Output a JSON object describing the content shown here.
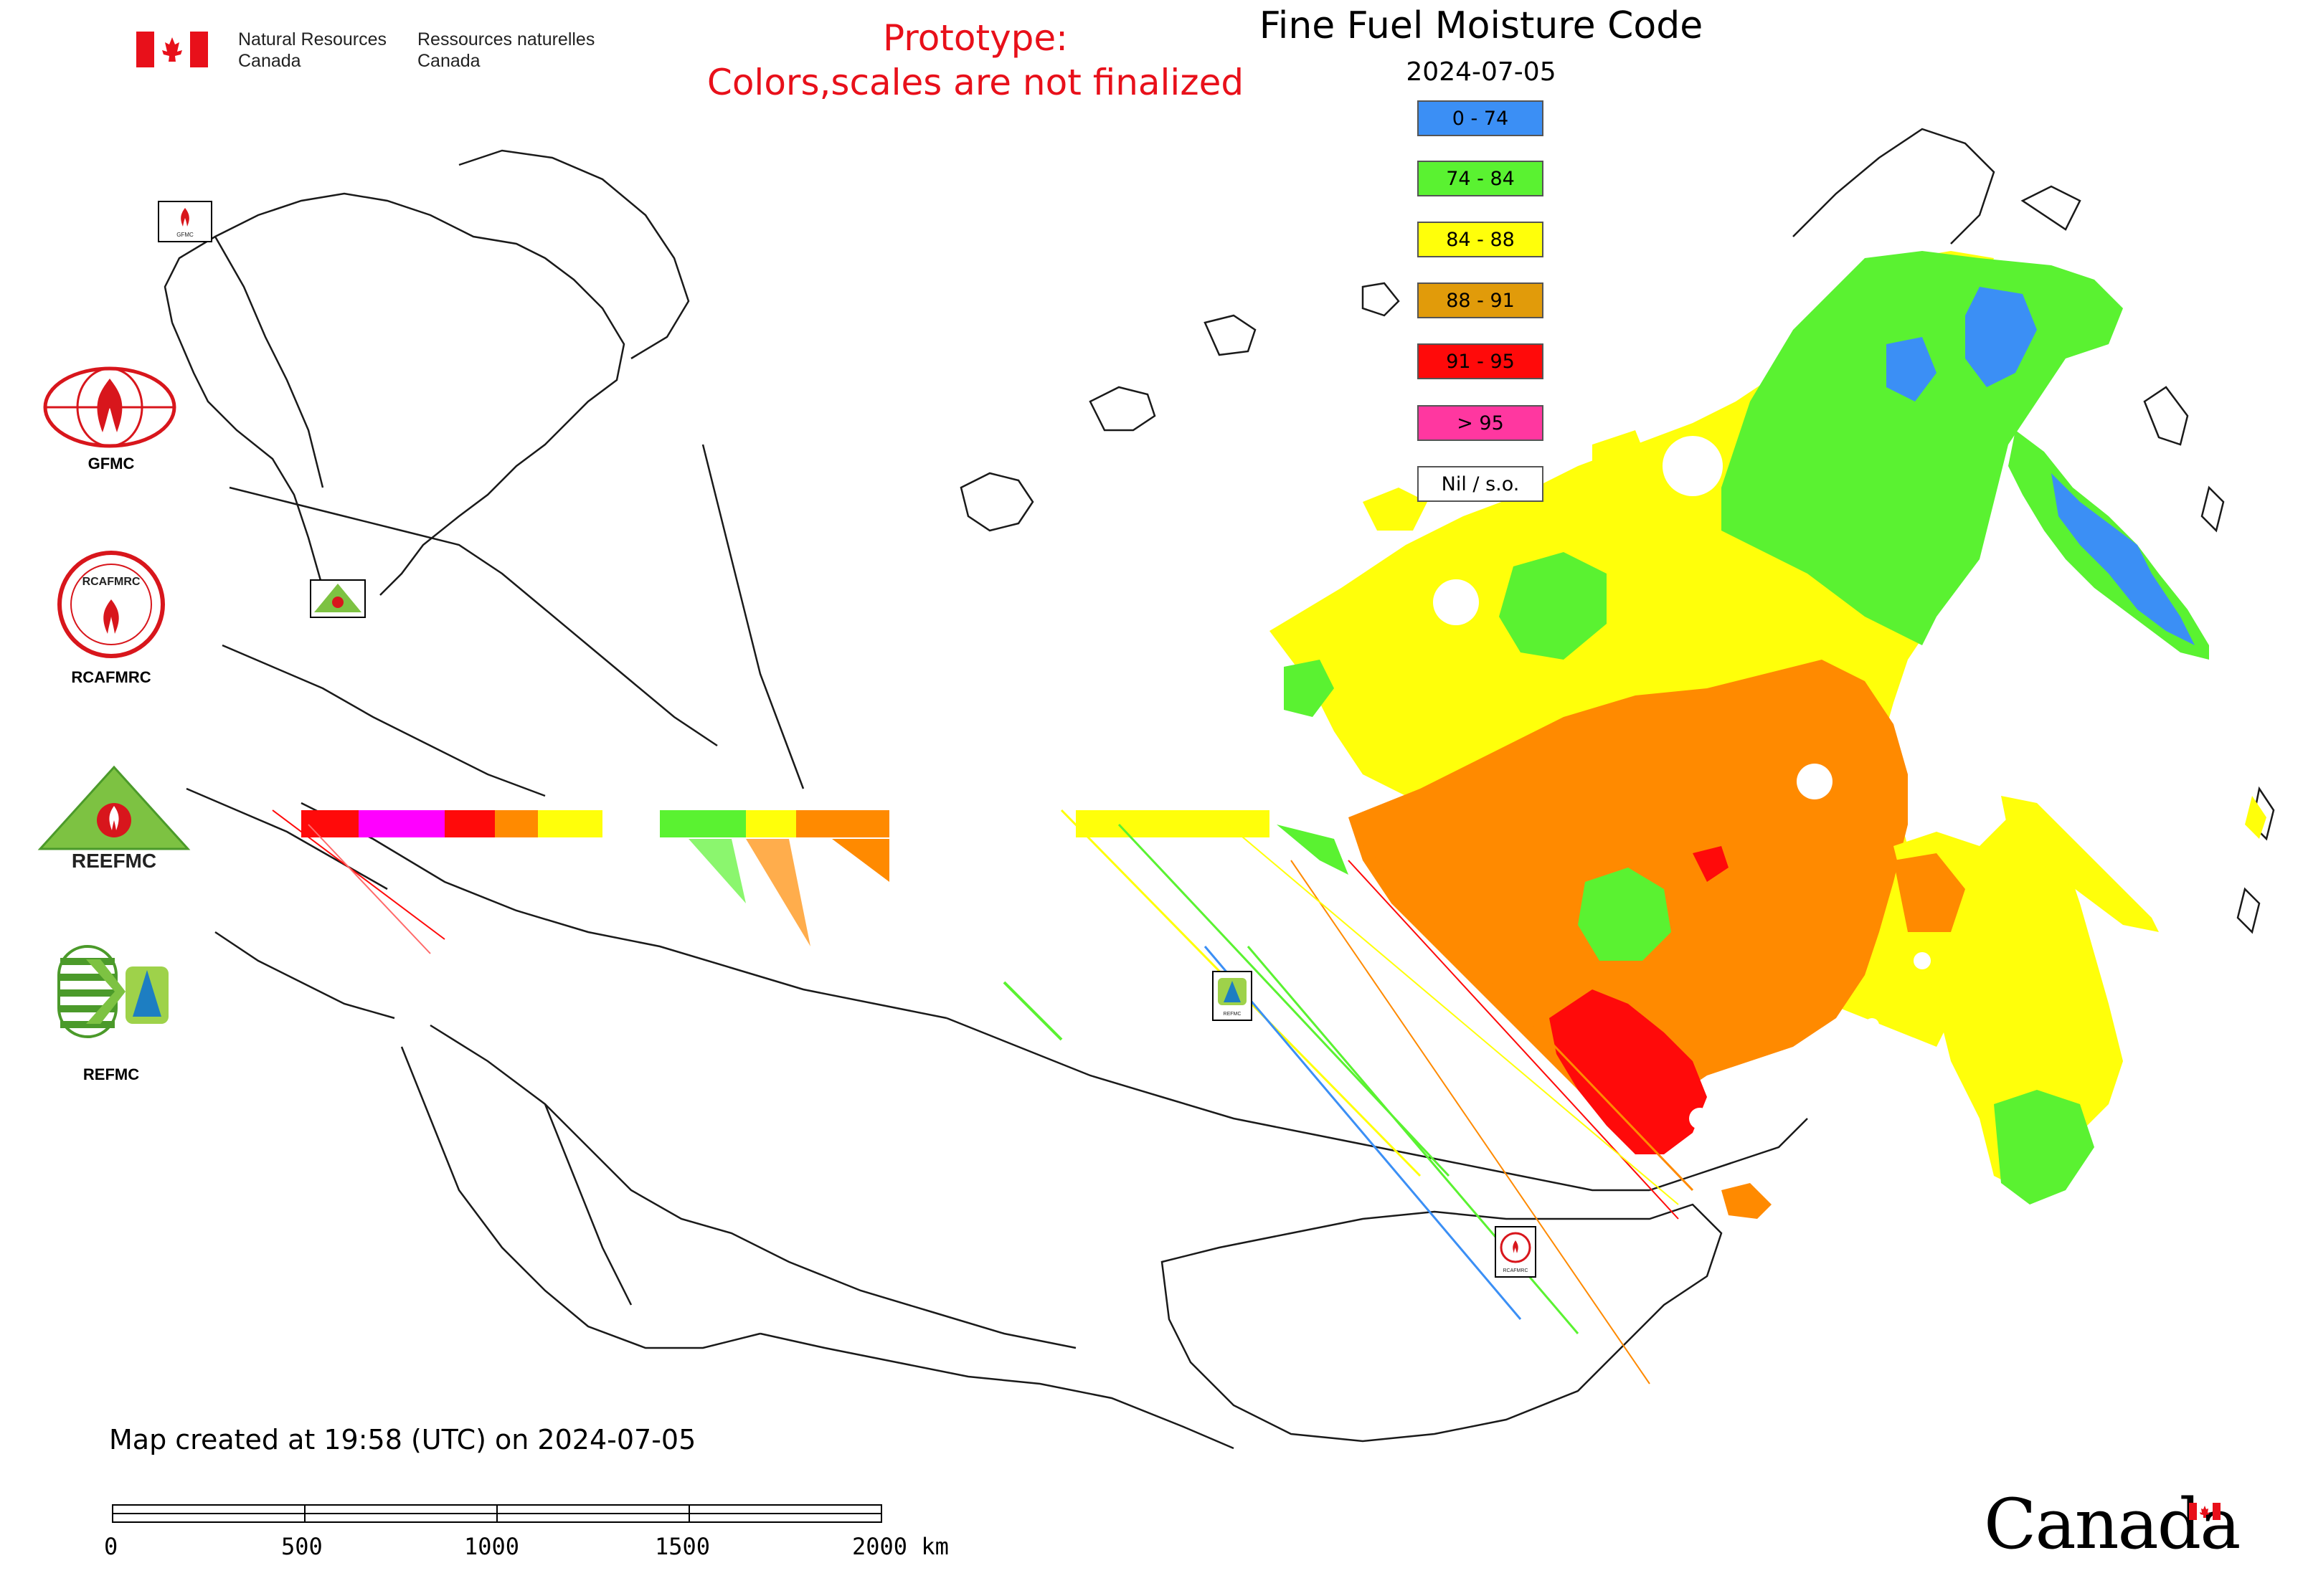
{
  "header": {
    "gov_en_line1": "Natural Resources",
    "gov_en_line2": "Canada",
    "gov_fr_line1": "Ressources naturelles",
    "gov_fr_line2": "Canada",
    "warning_line1": "Prototype:",
    "warning_line2": "Colors,scales are not finalized",
    "title": "Fine Fuel Moisture Code",
    "date": "2024-07-05"
  },
  "legend": [
    {
      "label": "0 - 74",
      "color": "#3b8ff5"
    },
    {
      "label": "74 - 84",
      "color": "#5af231"
    },
    {
      "label": "84 - 88",
      "color": "#ffff0a"
    },
    {
      "label": "88 - 91",
      "color": "#e19b0a"
    },
    {
      "label": "91 - 95",
      "color": "#ff0a0a"
    },
    {
      "label": "> 95",
      "color": "#ff37a0"
    },
    {
      "label": "Nil / s.o.",
      "color": "#ffffff"
    }
  ],
  "sidebar_logos": [
    {
      "name": "GFMC",
      "label": "GFMC"
    },
    {
      "name": "RCAFMRC",
      "label": "RCAFMRC"
    },
    {
      "name": "REEFMC",
      "label": ""
    },
    {
      "name": "REFMC",
      "label": "REFMC"
    }
  ],
  "reefmc_logo_text": "REEFMC",
  "rcafmrc_logo_text": "RCAFMRC",
  "map_markers": {
    "gfmc": "GFMC",
    "refmc": "REFMC",
    "rcafmrc": "RCAFMRC"
  },
  "credit": "Map created at 19:58 (UTC) on 2024-07-05",
  "scale_bar": {
    "labels": [
      "0",
      "500",
      "1000",
      "1500",
      "2000 km"
    ]
  },
  "wordmark": "Canada"
}
